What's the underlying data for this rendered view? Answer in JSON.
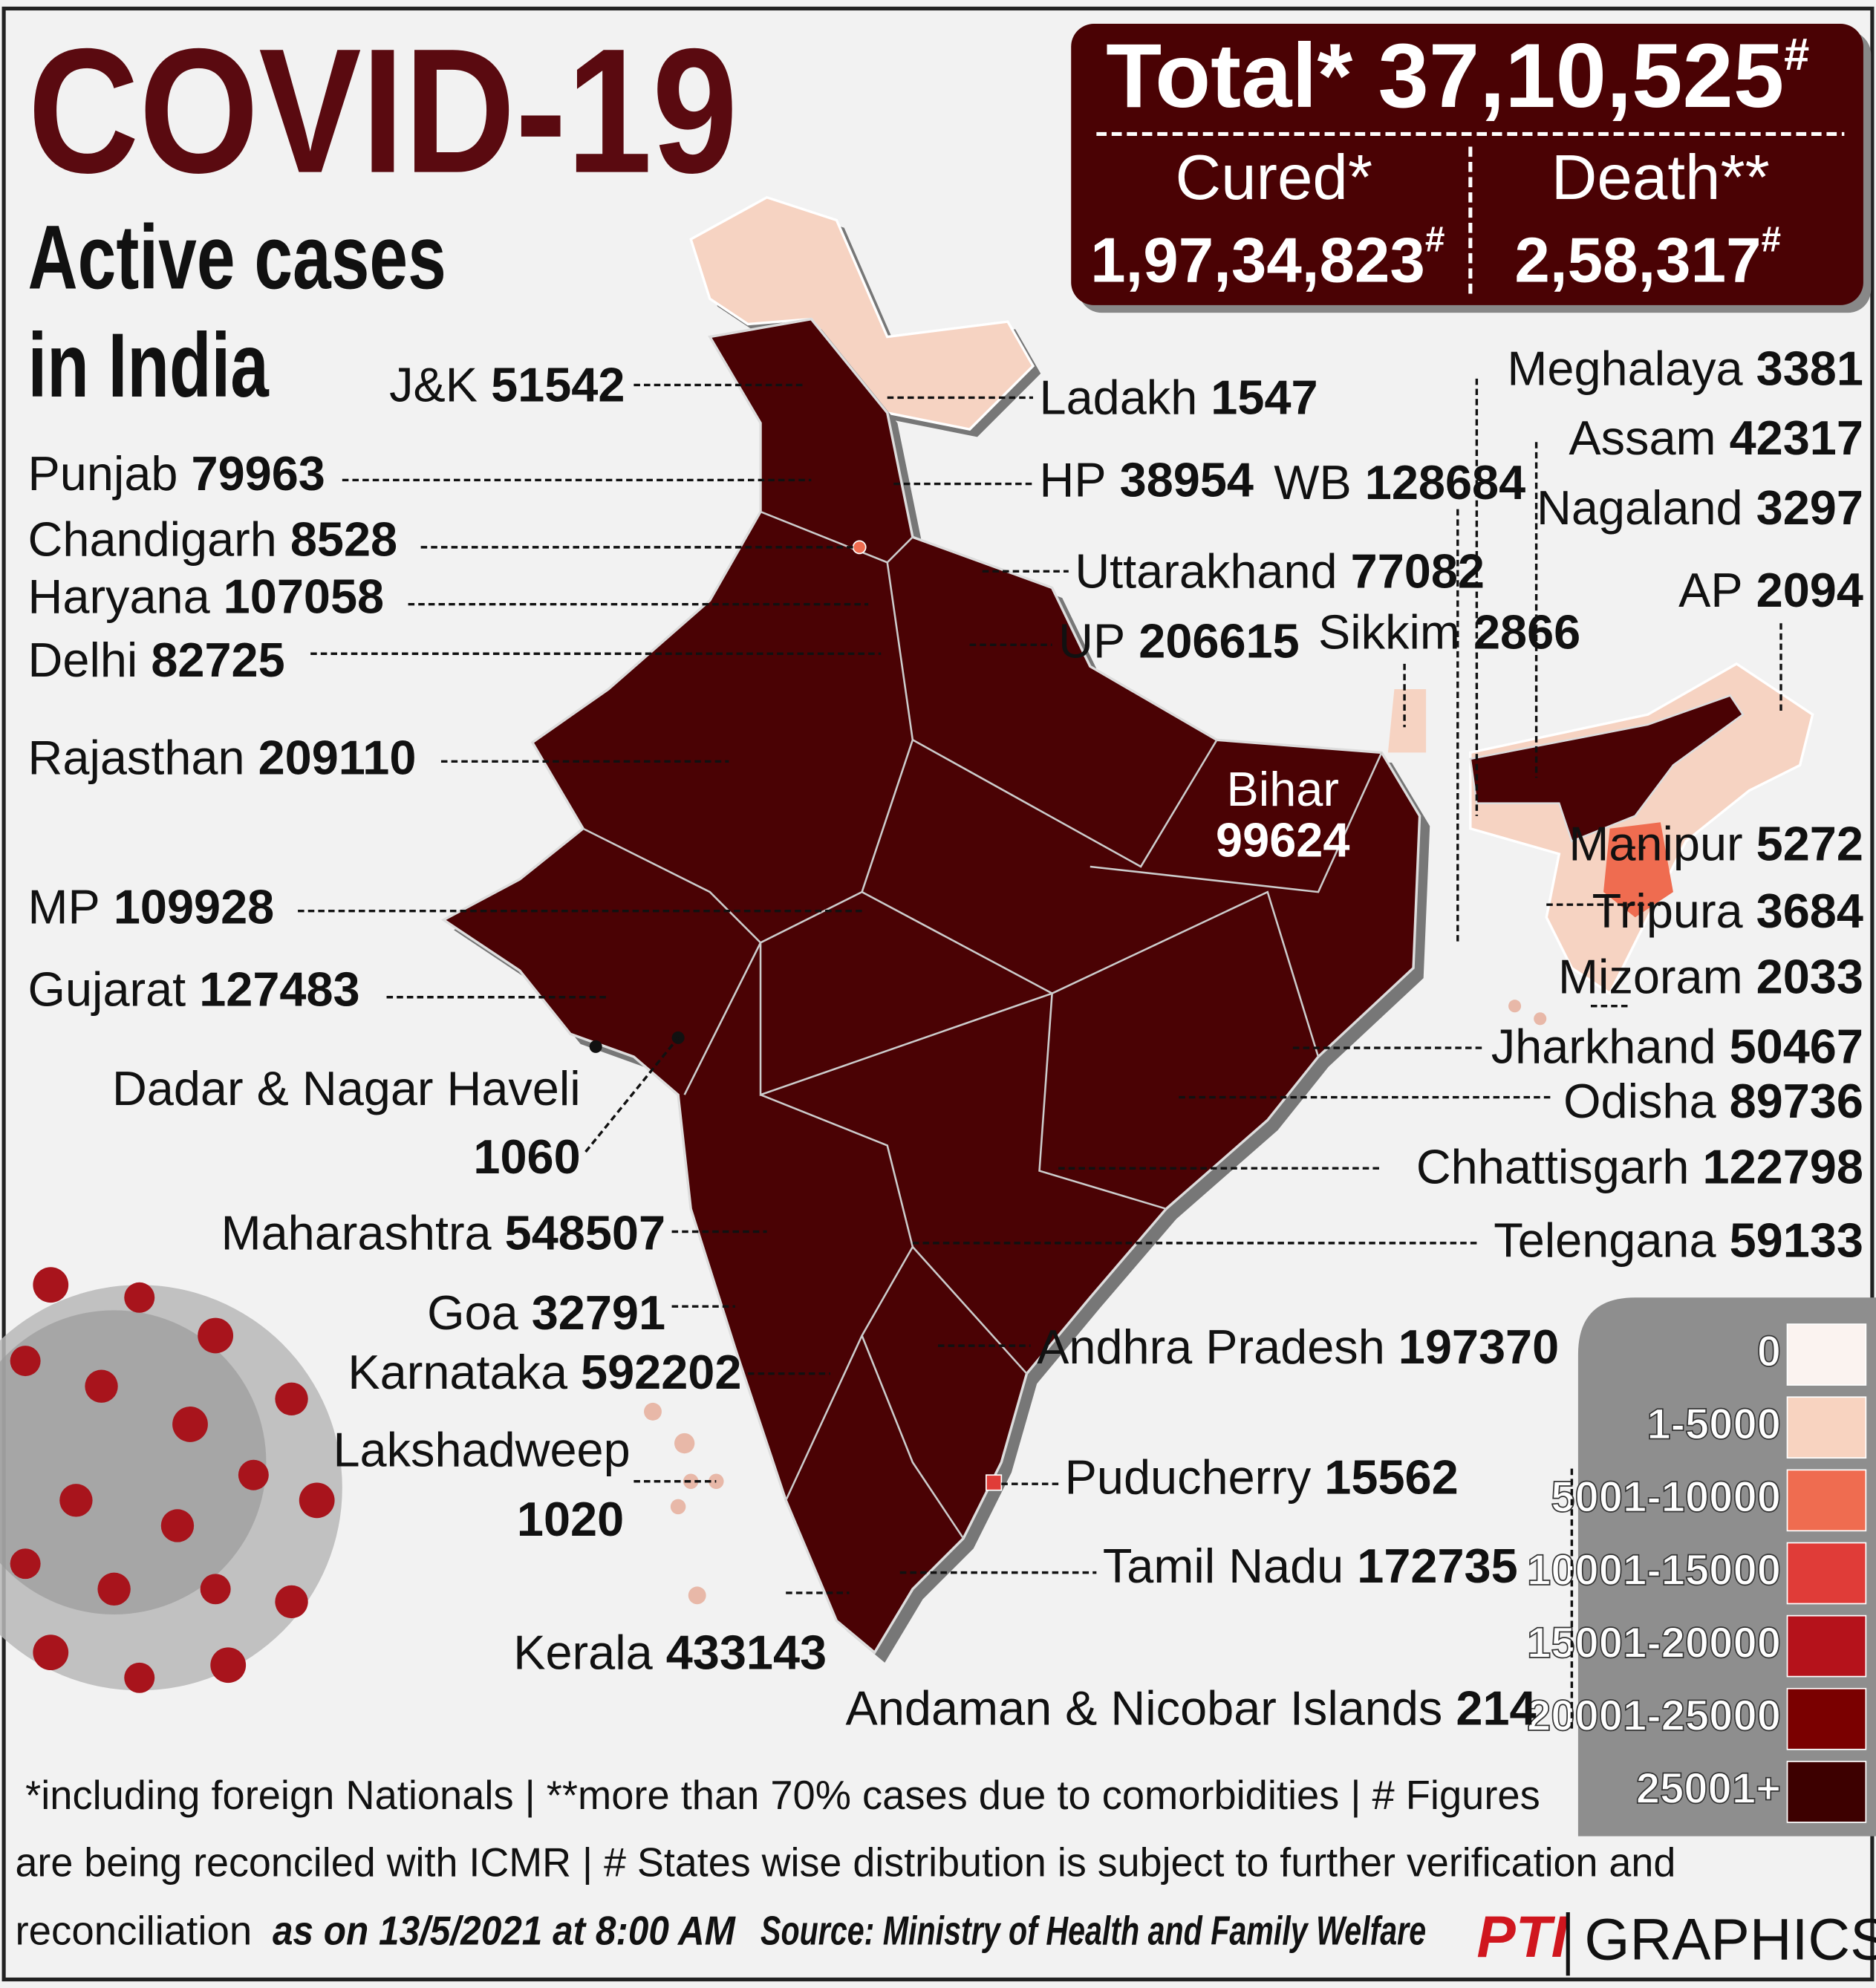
{
  "header": {
    "title": "COVID-19",
    "subtitle_line1": "Active cases",
    "subtitle_line2": "in India"
  },
  "summary": {
    "total_label": "Total*",
    "total": "37,10,525",
    "total_mark": "#",
    "cured_label": "Cured*",
    "cured": "1,97,34,823",
    "cured_mark": "#",
    "death_label": "Death**",
    "death": "2,58,317",
    "death_mark": "#"
  },
  "states": [
    {
      "name": "J&K",
      "value": 51542
    },
    {
      "name": "Ladakh",
      "value": 1547
    },
    {
      "name": "Punjab",
      "value": 79963
    },
    {
      "name": "HP",
      "value": 38954
    },
    {
      "name": "WB",
      "value": 128684
    },
    {
      "name": "Chandigarh",
      "value": 8528
    },
    {
      "name": "Uttarakhand",
      "value": 77082
    },
    {
      "name": "Haryana",
      "value": 107058
    },
    {
      "name": "UP",
      "value": 206615
    },
    {
      "name": "Sikkim",
      "value": 2866
    },
    {
      "name": "Delhi",
      "value": 82725
    },
    {
      "name": "Rajasthan",
      "value": 209110
    },
    {
      "name": "Meghalaya",
      "value": 3381
    },
    {
      "name": "Assam",
      "value": 42317
    },
    {
      "name": "Nagaland",
      "value": 3297
    },
    {
      "name": "AP",
      "value": 2094
    },
    {
      "name": "Bihar",
      "value": 99624
    },
    {
      "name": "MP",
      "value": 109928
    },
    {
      "name": "Gujarat",
      "value": 127483
    },
    {
      "name": "Manipur",
      "value": 5272
    },
    {
      "name": "Tripura",
      "value": 3684
    },
    {
      "name": "Mizoram",
      "value": 2033
    },
    {
      "name": "Jharkhand",
      "value": 50467
    },
    {
      "name": "Odisha",
      "value": 89736
    },
    {
      "name": "Dadar & Nagar Haveli",
      "value": 1060
    },
    {
      "name": "Chhattisgarh",
      "value": 122798
    },
    {
      "name": "Maharashtra",
      "value": 548507
    },
    {
      "name": "Telengana",
      "value": 59133
    },
    {
      "name": "Goa",
      "value": 32791
    },
    {
      "name": "Karnataka",
      "value": 592202
    },
    {
      "name": "Andhra Pradesh",
      "value": 197370
    },
    {
      "name": "Lakshadweep",
      "value": 1020
    },
    {
      "name": "Puducherry",
      "value": 15562
    },
    {
      "name": "Tamil Nadu",
      "value": 172735
    },
    {
      "name": "Kerala",
      "value": 433143
    },
    {
      "name": "Andaman & Nicobar Islands",
      "value": 214
    }
  ],
  "legend": [
    {
      "label": "0",
      "color": "#fbf3f0"
    },
    {
      "label": "1-5000",
      "color": "#f8d3c0"
    },
    {
      "label": "5001-10000",
      "color": "#ef6c50"
    },
    {
      "label": "10001-15000",
      "color": "#e03c38"
    },
    {
      "label": "15001-20000",
      "color": "#b5121b"
    },
    {
      "label": "20001-25000",
      "color": "#7a0000"
    },
    {
      "label": "25001+",
      "color": "#3d0000"
    }
  ],
  "footnote": [
    "*including foreign Nationals | **more than 70% cases due to comorbidities | # Figures",
    "are being reconciled with ICMR | # States wise distribution is subject to further verification and",
    "reconciliation"
  ],
  "date_line": "as on 13/5/2021 at 8:00 AM",
  "source": "Source: Ministry of Health and Family Welfare",
  "brand": {
    "logo": "PTI",
    "text": "GRAPHICS"
  }
}
